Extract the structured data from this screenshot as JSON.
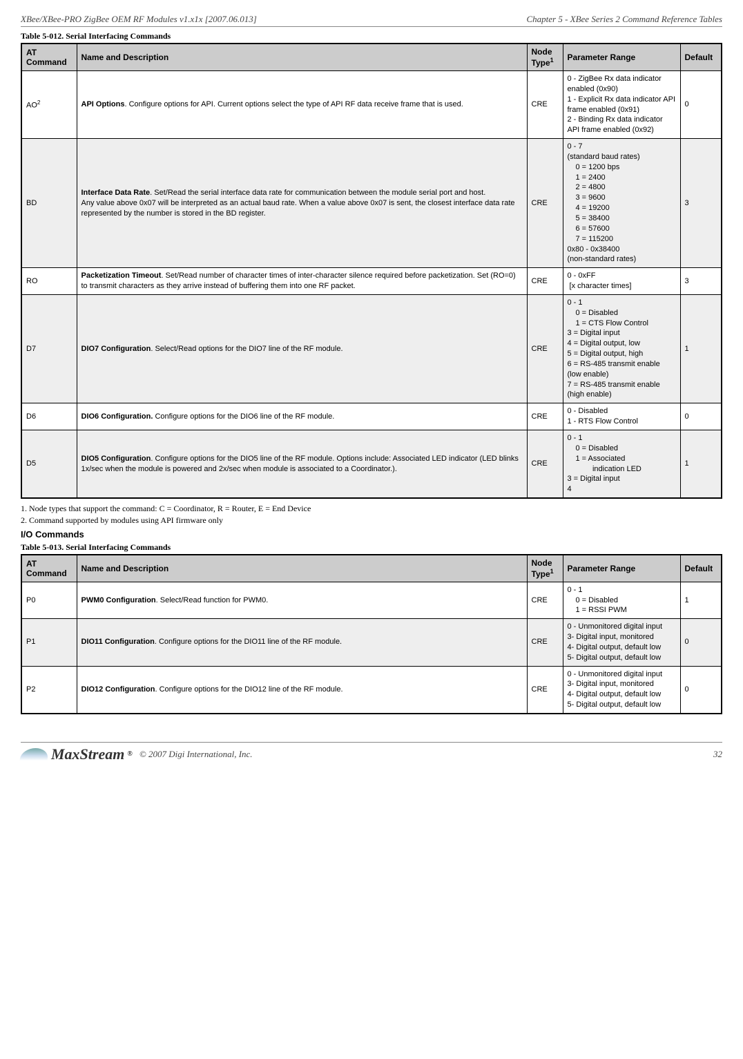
{
  "header": {
    "left": "XBee/XBee-PRO ZigBee OEM RF Modules v1.x1x  [2007.06.013]",
    "right": "Chapter 5 - XBee Series 2 Command Reference Tables"
  },
  "table012": {
    "caption": "Table 5-012.  Serial Interfacing Commands",
    "columns": {
      "at": "AT Command",
      "name": "Name and Description",
      "type_html": "Node Type<sup class=\"sup\">1</sup>",
      "range": "Parameter Range",
      "def": "Default"
    },
    "rows": [
      {
        "at_html": "AO<sup class=\"sup\">2</sup>",
        "desc_html": "<b>API Options</b>. Configure options for API. Current options select the type of API RF data receive frame that is used.",
        "type": "CRE",
        "range_html": "0 - ZigBee Rx data indicator enabled (0x90)<br>1 - Explicit Rx data indicator API frame enabled (0x91)<br>2 - Binding Rx data indicator API frame enabled (0x92)",
        "def": "0",
        "alt": false
      },
      {
        "at_html": "BD",
        "desc_html": "<b>Interface Data Rate</b>. Set/Read the serial interface data rate for communication between the module serial port and host.<br>Any value above 0x07 will be interpreted as an actual baud rate. When a value above 0x07 is sent, the closest interface data rate represented by the number is stored in the BD register.",
        "type": "CRE",
        "range_html": "0 - 7<br>(standard baud rates)<span class=\"indent\">0 = 1200 bps<br>1 = 2400<br>2 = 4800<br>3 = 9600<br>4 = 19200<br>5 = 38400<br>6 = 57600<br>7 = 115200</span>0x80 - 0x38400<br>(non-standard rates)",
        "def": "3",
        "alt": true
      },
      {
        "at_html": "RO",
        "desc_html": "<b>Packetization Timeout</b>. Set/Read number of character times of inter-character silence required before packetization. Set (RO=0) to transmit characters as they arrive instead of buffering them into one RF packet.",
        "type": "CRE",
        "range_html": "0 - 0xFF<br>&nbsp;[x character times]",
        "def": "3",
        "alt": false
      },
      {
        "at_html": "D7",
        "desc_html": "<b>DIO7 Configuration</b>. Select/Read options for the DIO7 line of the RF module.",
        "type": "CRE",
        "range_html": "0 - 1<span class=\"indent\">0 = Disabled<br>1 = CTS Flow Control</span>3 = Digital input<br>4 = Digital output, low<br>5 = Digital output, high<br>6 = RS-485 transmit enable (low enable)<br>7 = RS-485 transmit enable (high enable)",
        "def": "1",
        "alt": true
      },
      {
        "at_html": "D6",
        "desc_html": "<b>DIO6 Configuration.</b> Configure options for the DIO6 line of the RF module.",
        "type": "CRE",
        "range_html": "0 - Disabled<br>1 - RTS Flow Control",
        "def": "0",
        "alt": false
      },
      {
        "at_html": "D5",
        "desc_html": "<b>DIO5 Configuration</b>. Configure options for the DIO5 line of the RF module. Options include: Associated LED indicator (LED blinks 1x/sec when the module is powered and 2x/sec when module is associated to a Coordinator.).",
        "type": "CRE",
        "range_html": "0 - 1<span class=\"indent\">0 = Disabled<br>1 = Associated<br>&nbsp;&nbsp;&nbsp;&nbsp;&nbsp;&nbsp;&nbsp;&nbsp;indication LED</span>3 = Digital input<br>4",
        "def": "1",
        "alt": true
      }
    ]
  },
  "footnotes": [
    "1. Node types that support the command: C = Coordinator, R = Router, E = End Device",
    "2. Command supported by modules using API firmware only"
  ],
  "section2_title": "I/O Commands",
  "table013": {
    "caption": "Table 5-013.  Serial Interfacing Commands",
    "columns": {
      "at": "AT Command",
      "name": "Name and Description",
      "type_html": "Node Type<sup class=\"sup\">1</sup>",
      "range": "Parameter Range",
      "def": "Default"
    },
    "rows": [
      {
        "at_html": "P0",
        "desc_html": "<b>PWM0 Configuration</b>. Select/Read function for PWM0.",
        "type": "CRE",
        "range_html": "0 - 1<span class=\"indent\">0 = Disabled<br>1 = RSSI PWM</span>",
        "def": "1",
        "alt": false
      },
      {
        "at_html": "P1",
        "desc_html": "<b>DIO11 Configuration</b>. Configure options for the DIO11 line of the RF module.",
        "type": "CRE",
        "range_html": "0 - Unmonitored digital input<br>3- Digital input, monitored<br>4- Digital output, default low<br>5- Digital output, default low",
        "def": "0",
        "alt": true
      },
      {
        "at_html": "P2",
        "desc_html": "<b>DIO12 Configuration</b>. Configure options for the DIO12 line of the RF module.",
        "type": "CRE",
        "range_html": "0 - Unmonitored digital input<br>3- Digital input, monitored<br>4- Digital output, default low<br>5- Digital output, default low",
        "def": "0",
        "alt": false
      }
    ]
  },
  "footer": {
    "logo_text": "MaxStream",
    "copyright": "© 2007 Digi International, Inc.",
    "page": "32"
  }
}
